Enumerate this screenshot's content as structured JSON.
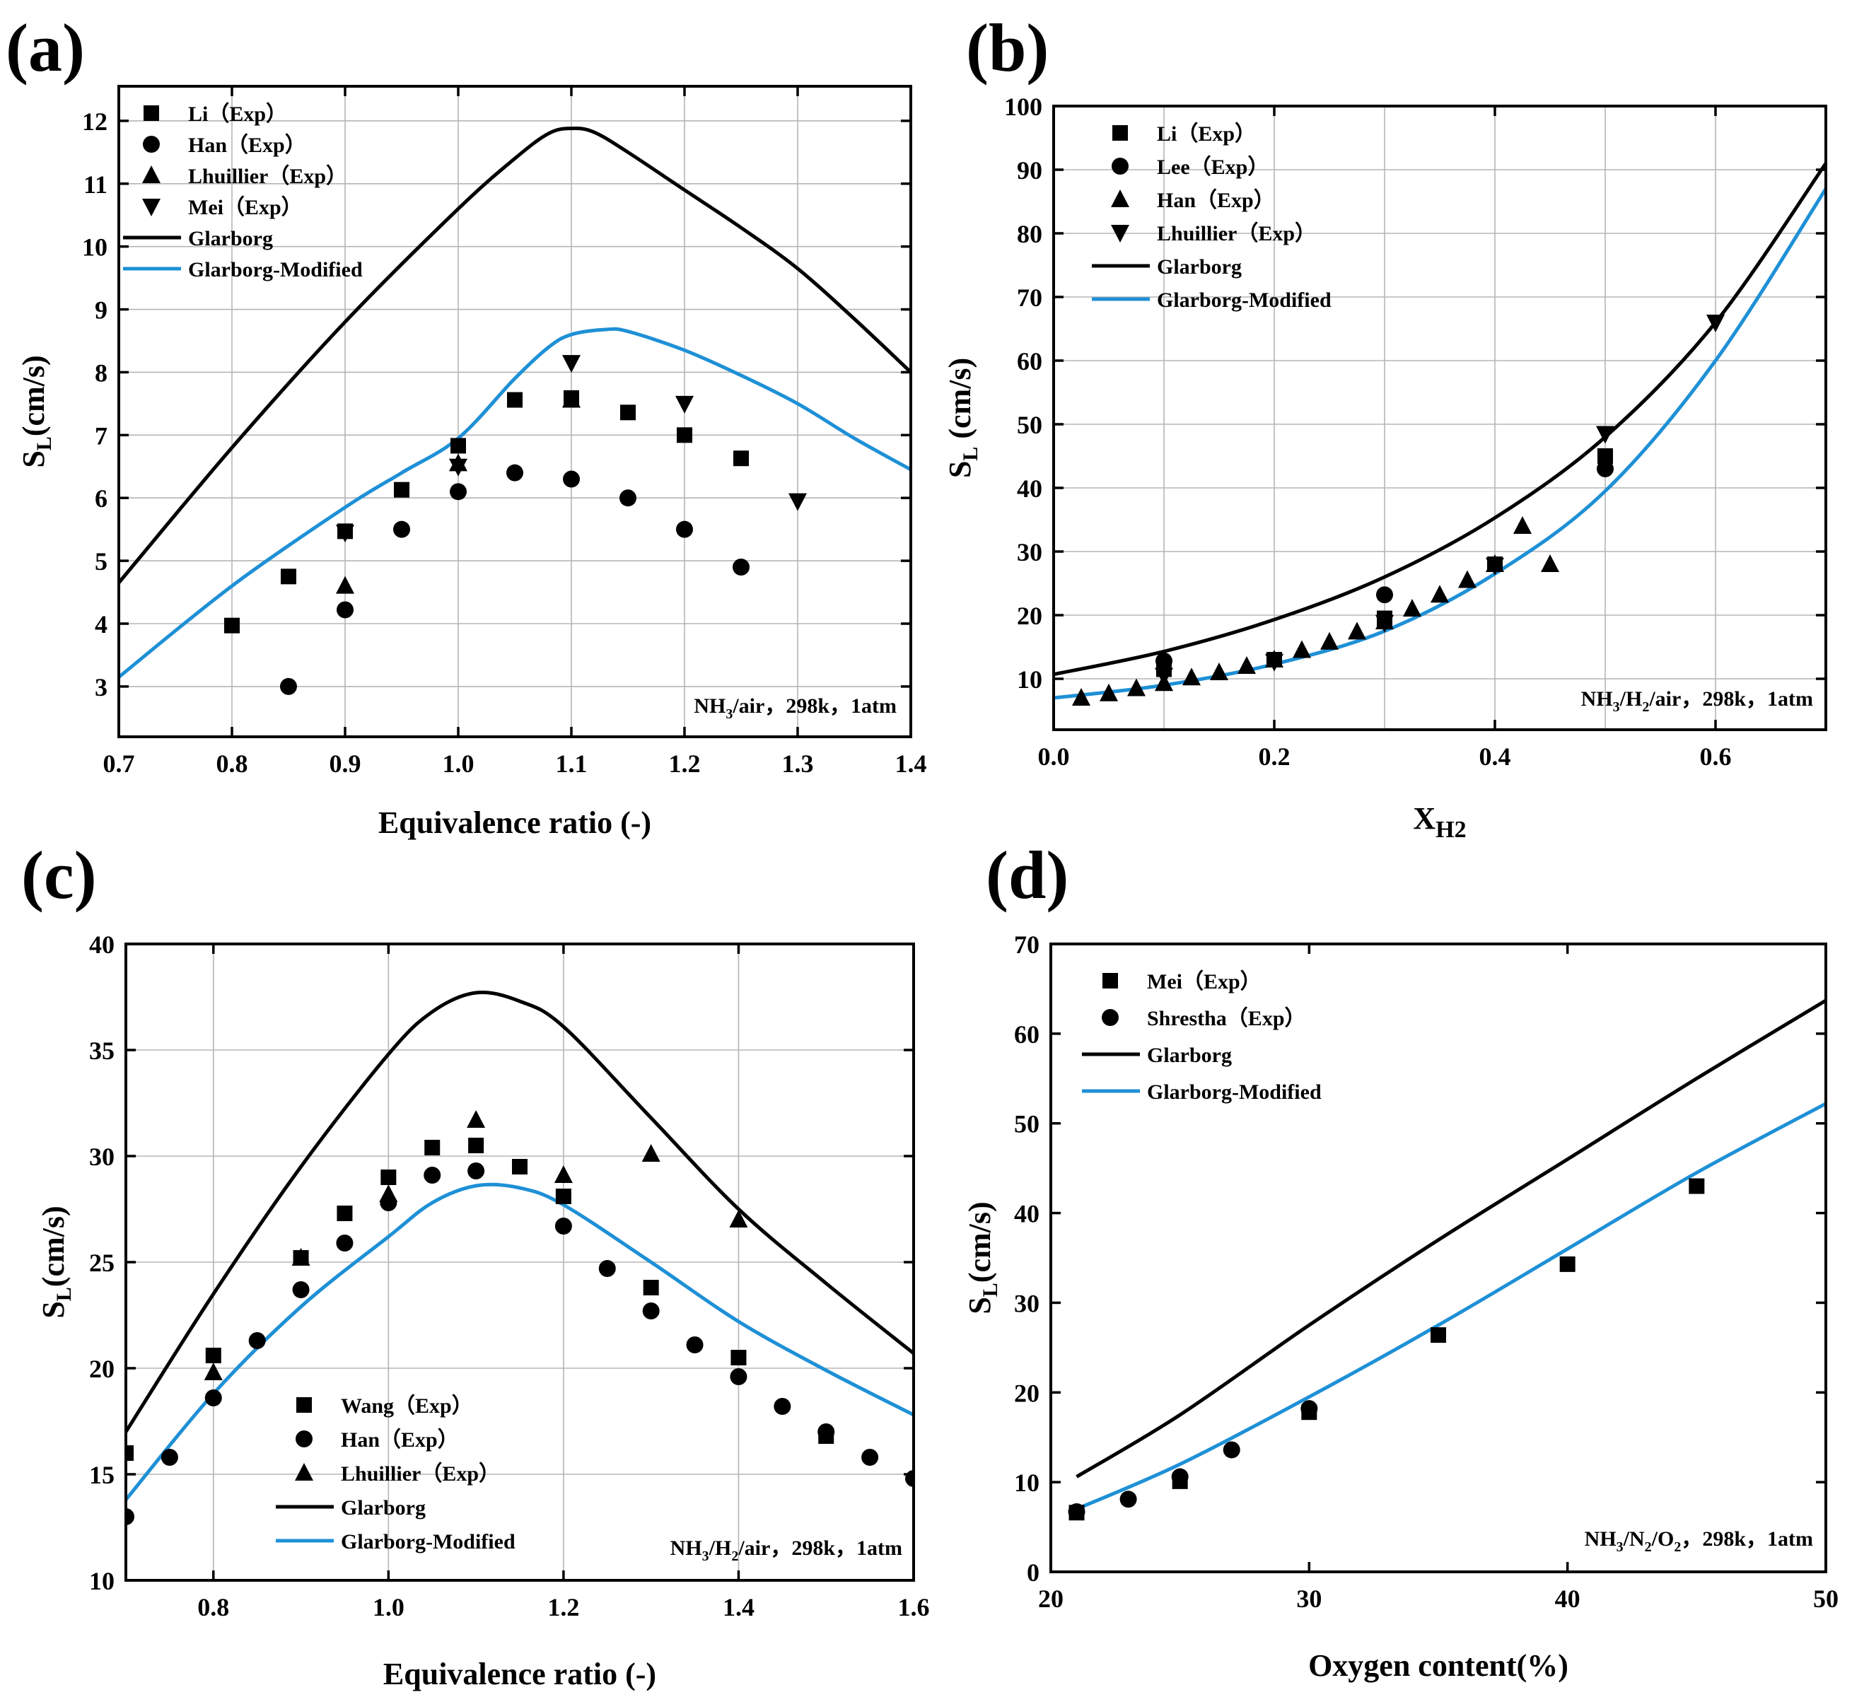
{
  "chart_data": [
    {
      "id": "a",
      "type": "scatter",
      "panel_label": "(a)",
      "xlabel": "Equivalence ratio (-)",
      "ylabel": "SL(cm/s)",
      "ylabel_main": "S",
      "ylabel_sub": "L",
      "ylabel_rest": "(cm/s)",
      "xlim": [
        0.7,
        1.4
      ],
      "ylim": [
        2.2,
        12.55
      ],
      "xticks": [
        0.7,
        0.8,
        0.9,
        1.0,
        1.1,
        1.2,
        1.3,
        1.4
      ],
      "xtick_labels": [
        "0.7",
        "0.8",
        "0.9",
        "1.0",
        "1.1",
        "1.2",
        "1.3",
        "1.4"
      ],
      "yticks": [
        3,
        4,
        5,
        6,
        7,
        8,
        9,
        10,
        11,
        12
      ],
      "ytick_labels": [
        "3",
        "4",
        "5",
        "6",
        "7",
        "8",
        "9",
        "10",
        "11",
        "12"
      ],
      "grid": true,
      "legend_position": "top-left",
      "condition": "NH3/air，298k，1atm",
      "condition_parts": [
        "NH",
        "3",
        "/air，298k，1atm"
      ],
      "series": [
        {
          "name": "Li（Exp）",
          "marker": "square",
          "x": [
            0.8,
            0.85,
            0.9,
            0.95,
            1.0,
            1.05,
            1.1,
            1.15,
            1.2,
            1.25
          ],
          "y": [
            3.97,
            4.75,
            5.47,
            6.13,
            6.83,
            7.56,
            7.59,
            7.36,
            7.0,
            6.63
          ]
        },
        {
          "name": "Han（Exp）",
          "marker": "circle",
          "x": [
            0.85,
            0.9,
            0.95,
            1.0,
            1.05,
            1.1,
            1.15,
            1.2,
            1.25
          ],
          "y": [
            3.0,
            4.22,
            5.5,
            6.1,
            6.4,
            6.3,
            6.0,
            5.5,
            4.9
          ]
        },
        {
          "name": "Lhuillier（Exp）",
          "marker": "triangle-up",
          "x": [
            0.9,
            1.0,
            1.1
          ],
          "y": [
            4.6,
            6.55,
            7.56
          ]
        },
        {
          "name": "Mei（Exp）",
          "marker": "triangle-down",
          "x": [
            0.9,
            1.0,
            1.1,
            1.2,
            1.3
          ],
          "y": [
            5.45,
            6.5,
            8.15,
            7.5,
            5.95
          ]
        },
        {
          "name": "Glarborg",
          "line": true,
          "color": "#000000",
          "x": [
            0.7,
            0.8,
            0.9,
            1.0,
            1.05,
            1.08,
            1.1,
            1.12,
            1.15,
            1.2,
            1.25,
            1.3,
            1.35,
            1.4
          ],
          "y": [
            4.65,
            6.8,
            8.8,
            10.6,
            11.4,
            11.8,
            11.88,
            11.82,
            11.5,
            10.9,
            10.3,
            9.65,
            8.85,
            8.0
          ]
        },
        {
          "name": "Glarborg-Modified",
          "line": true,
          "color": "#1e90d6",
          "x": [
            0.7,
            0.8,
            0.9,
            0.95,
            1.0,
            1.05,
            1.08,
            1.1,
            1.13,
            1.15,
            1.2,
            1.25,
            1.3,
            1.35,
            1.4
          ],
          "y": [
            3.15,
            4.6,
            5.85,
            6.4,
            6.95,
            7.9,
            8.4,
            8.6,
            8.68,
            8.65,
            8.35,
            7.95,
            7.5,
            6.95,
            6.45
          ]
        }
      ]
    },
    {
      "id": "b",
      "type": "scatter",
      "panel_label": "(b)",
      "xlabel": "XH2",
      "xlabel_main": "X",
      "xlabel_sub": "H2",
      "ylabel": "SL (cm/s)",
      "ylabel_main": "S",
      "ylabel_sub": "L",
      "ylabel_rest": " (cm/s)",
      "xlim": [
        0.0,
        0.7
      ],
      "ylim": [
        2,
        100
      ],
      "xticks": [
        0.0,
        0.2,
        0.4,
        0.6
      ],
      "xtick_labels": [
        "0.0",
        "0.2",
        "0.4",
        "0.6"
      ],
      "xgrid": [
        0.0,
        0.1,
        0.2,
        0.3,
        0.4,
        0.5,
        0.6,
        0.7
      ],
      "yticks": [
        10,
        20,
        30,
        40,
        50,
        60,
        70,
        80,
        90,
        100
      ],
      "ytick_labels": [
        "10",
        "20",
        "30",
        "40",
        "50",
        "60",
        "70",
        "80",
        "90",
        "100"
      ],
      "grid": true,
      "legend_position": "top-left",
      "condition": "NH3/H2/air，298k，1atm",
      "condition_parts": [
        "NH",
        "3",
        "/H",
        "2",
        "/air，298k，1atm"
      ],
      "series": [
        {
          "name": "Li（Exp）",
          "marker": "square",
          "x": [
            0.1,
            0.2,
            0.3,
            0.4,
            0.5
          ],
          "y": [
            11.5,
            13.0,
            19.5,
            28.0,
            45.0
          ]
        },
        {
          "name": "Lee（Exp）",
          "marker": "circle",
          "x": [
            0.1,
            0.3,
            0.5
          ],
          "y": [
            12.8,
            23.2,
            43.0
          ]
        },
        {
          "name": "Han（Exp）",
          "marker": "triangle-up",
          "x": [
            0.025,
            0.05,
            0.075,
            0.1,
            0.125,
            0.15,
            0.175,
            0.2,
            0.225,
            0.25,
            0.275,
            0.3,
            0.325,
            0.35,
            0.375,
            0.4,
            0.425,
            0.45
          ],
          "y": [
            7.0,
            7.7,
            8.5,
            9.3,
            10.2,
            11.0,
            12.0,
            13.0,
            14.5,
            15.8,
            17.4,
            19.0,
            21.0,
            23.2,
            25.5,
            28.0,
            34.0,
            28.0
          ]
        },
        {
          "name": "Lhuillier（Exp）",
          "marker": "triangle-down",
          "x": [
            0.1,
            0.2,
            0.3,
            0.4,
            0.5,
            0.6
          ],
          "y": [
            10.5,
            12.7,
            18.8,
            27.8,
            48.5,
            66.0
          ]
        },
        {
          "name": "Glarborg",
          "line": true,
          "color": "#000000",
          "x": [
            0.0,
            0.1,
            0.2,
            0.3,
            0.4,
            0.5,
            0.6,
            0.7
          ],
          "y": [
            10.7,
            14.3,
            19.3,
            26.0,
            35.3,
            48.0,
            66.0,
            91.0
          ]
        },
        {
          "name": "Glarborg-Modified",
          "line": true,
          "color": "#1e90d6",
          "x": [
            0.0,
            0.1,
            0.2,
            0.3,
            0.4,
            0.5,
            0.6,
            0.7
          ],
          "y": [
            7.0,
            9.0,
            12.3,
            17.5,
            26.5,
            39.5,
            60.0,
            87.0
          ]
        }
      ]
    },
    {
      "id": "c",
      "type": "scatter",
      "panel_label": "(c)",
      "xlabel": "Equivalence ratio (-)",
      "ylabel": "SL(cm/s)",
      "ylabel_main": "S",
      "ylabel_sub": "L",
      "ylabel_rest": "(cm/s)",
      "xlim": [
        0.7,
        1.6
      ],
      "ylim": [
        10,
        40
      ],
      "xticks": [
        0.8,
        1.0,
        1.2,
        1.4,
        1.6
      ],
      "xtick_labels": [
        "0.8",
        "1.0",
        "1.2",
        "1.4",
        "1.6"
      ],
      "xgrid": [
        0.8,
        1.0,
        1.2,
        1.4,
        1.6
      ],
      "yticks": [
        10,
        15,
        20,
        25,
        30,
        35,
        40
      ],
      "ytick_labels": [
        "10",
        "15",
        "20",
        "25",
        "30",
        "35",
        "40"
      ],
      "grid": true,
      "legend_position": "bottom-left",
      "condition": "NH3/H2/air，298k，1atm",
      "condition_parts": [
        "NH",
        "3",
        "/H",
        "2",
        "/air，298k，1atm"
      ],
      "series": [
        {
          "name": "Wang（Exp）",
          "marker": "square",
          "x": [
            0.7,
            0.8,
            0.9,
            0.95,
            1.0,
            1.05,
            1.1,
            1.15,
            1.2,
            1.3,
            1.4,
            1.5
          ],
          "y": [
            16.0,
            20.6,
            25.2,
            27.3,
            29.0,
            30.4,
            30.5,
            29.5,
            28.1,
            23.8,
            20.5,
            16.8
          ]
        },
        {
          "name": "Han（Exp）",
          "marker": "circle",
          "x": [
            0.7,
            0.75,
            0.8,
            0.85,
            0.9,
            0.95,
            1.0,
            1.05,
            1.1,
            1.2,
            1.25,
            1.3,
            1.35,
            1.4,
            1.45,
            1.5,
            1.55,
            1.6
          ],
          "y": [
            13.0,
            15.8,
            18.6,
            21.3,
            23.7,
            25.9,
            27.8,
            29.1,
            29.3,
            26.7,
            24.7,
            22.7,
            21.1,
            19.6,
            18.2,
            17.0,
            15.8,
            14.8
          ]
        },
        {
          "name": "Lhuillier（Exp）",
          "marker": "triangle-up",
          "x": [
            0.8,
            0.9,
            1.0,
            1.1,
            1.2,
            1.3,
            1.4
          ],
          "y": [
            19.8,
            25.2,
            28.2,
            31.7,
            29.1,
            30.1,
            27.0
          ]
        },
        {
          "name": "Glarborg",
          "line": true,
          "color": "#000000",
          "x": [
            0.7,
            0.8,
            0.9,
            1.0,
            1.05,
            1.1,
            1.15,
            1.2,
            1.3,
            1.4,
            1.5,
            1.6
          ],
          "y": [
            17.0,
            23.5,
            29.5,
            34.8,
            36.8,
            37.7,
            37.3,
            36.1,
            31.8,
            27.5,
            24.0,
            20.7
          ]
        },
        {
          "name": "Glarborg-Modified",
          "line": true,
          "color": "#1e90d6",
          "x": [
            0.7,
            0.8,
            0.9,
            1.0,
            1.05,
            1.1,
            1.15,
            1.2,
            1.3,
            1.4,
            1.5,
            1.6
          ],
          "y": [
            13.8,
            18.8,
            22.9,
            26.2,
            27.8,
            28.6,
            28.5,
            27.7,
            25.0,
            22.2,
            19.9,
            17.8
          ]
        }
      ]
    },
    {
      "id": "d",
      "type": "scatter",
      "panel_label": "(d)",
      "xlabel": "Oxygen content(%)",
      "ylabel": "SL(cm/s)",
      "ylabel_main": "S",
      "ylabel_sub": "L",
      "ylabel_rest": "(cm/s)",
      "xlim": [
        20,
        50
      ],
      "ylim": [
        0,
        70
      ],
      "xticks": [
        20,
        30,
        40,
        50
      ],
      "xtick_labels": [
        "20",
        "30",
        "40",
        "50"
      ],
      "yticks": [
        0,
        10,
        20,
        30,
        40,
        50,
        60,
        70
      ],
      "ytick_labels": [
        "0",
        "10",
        "20",
        "30",
        "40",
        "50",
        "60",
        "70"
      ],
      "grid": false,
      "legend_position": "top-left",
      "condition": "NH3/N2/O2，298k，1atm",
      "condition_parts": [
        "NH",
        "3",
        "/N",
        "2",
        "/O",
        "2",
        "，298k，1atm"
      ],
      "series": [
        {
          "name": "Mei（Exp）",
          "marker": "square",
          "x": [
            21,
            25,
            30,
            35,
            40,
            45
          ],
          "y": [
            6.6,
            10.1,
            17.8,
            26.4,
            34.3,
            43.0
          ]
        },
        {
          "name": "Shrestha（Exp）",
          "marker": "circle",
          "x": [
            21,
            23,
            25,
            27,
            30
          ],
          "y": [
            6.7,
            8.1,
            10.6,
            13.6,
            18.2
          ]
        },
        {
          "name": "Glarborg",
          "line": true,
          "color": "#000000",
          "x": [
            21,
            25,
            30,
            35,
            40,
            45,
            50
          ],
          "y": [
            10.6,
            17.5,
            27.5,
            37.0,
            46.0,
            55.0,
            63.7
          ]
        },
        {
          "name": "Glarborg-Modified",
          "line": true,
          "color": "#1e90d6",
          "x": [
            21,
            25,
            30,
            35,
            40,
            45,
            50
          ],
          "y": [
            7.0,
            12.0,
            19.5,
            27.5,
            36.0,
            44.5,
            52.2
          ]
        }
      ]
    }
  ]
}
